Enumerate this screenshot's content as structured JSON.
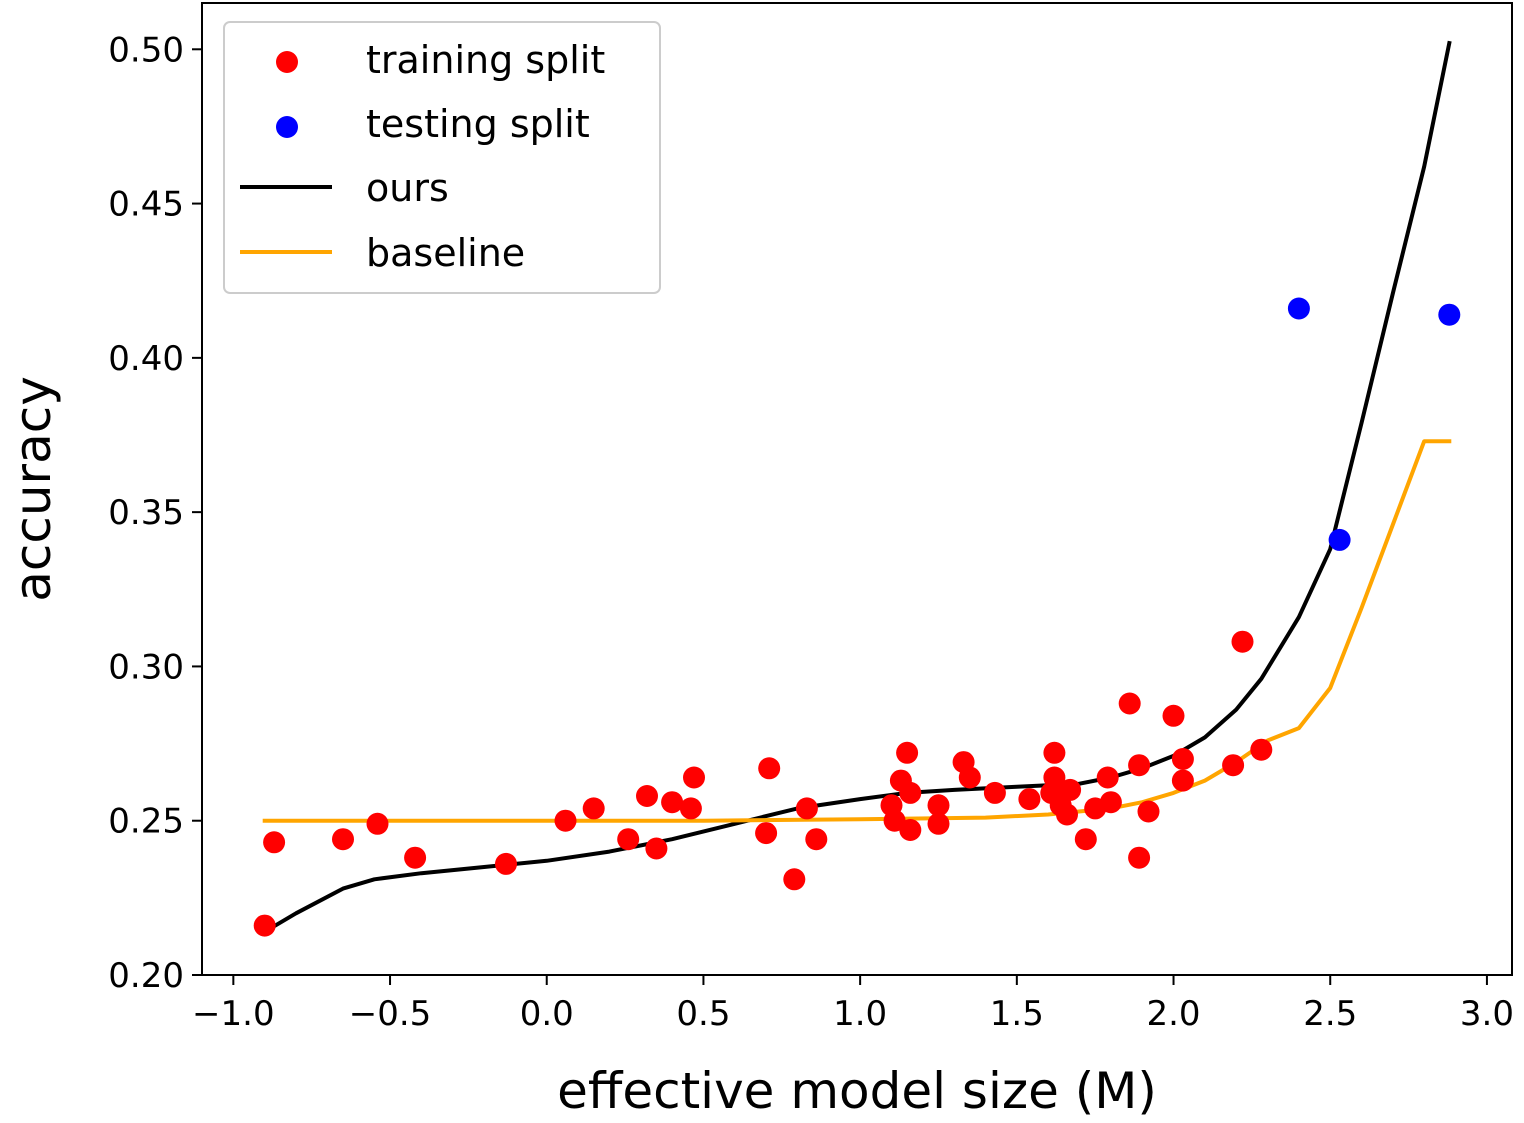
{
  "chart_data": {
    "type": "scatter",
    "xlabel": "effective model size (M)",
    "ylabel": "accuracy",
    "xlim": [
      -1.1,
      3.08
    ],
    "ylim": [
      0.2,
      0.515
    ],
    "xticks": [
      -1.0,
      -0.5,
      0.0,
      0.5,
      1.0,
      1.5,
      2.0,
      2.5,
      3.0
    ],
    "xtick_labels": [
      "−1.0",
      "−0.5",
      "0.0",
      "0.5",
      "1.0",
      "1.5",
      "2.0",
      "2.5",
      "3.0"
    ],
    "yticks": [
      0.2,
      0.25,
      0.3,
      0.35,
      0.4,
      0.45,
      0.5
    ],
    "ytick_labels": [
      "0.20",
      "0.25",
      "0.30",
      "0.35",
      "0.40",
      "0.45",
      "0.50"
    ],
    "grid": false,
    "legend_position": "top-left",
    "series": [
      {
        "name": "training split",
        "kind": "scatter",
        "color": "#ff0000",
        "points": [
          [
            -0.9,
            0.216
          ],
          [
            -0.87,
            0.243
          ],
          [
            -0.65,
            0.244
          ],
          [
            -0.54,
            0.249
          ],
          [
            -0.42,
            0.238
          ],
          [
            -0.13,
            0.236
          ],
          [
            0.06,
            0.25
          ],
          [
            0.15,
            0.254
          ],
          [
            0.26,
            0.244
          ],
          [
            0.32,
            0.258
          ],
          [
            0.35,
            0.241
          ],
          [
            0.4,
            0.256
          ],
          [
            0.46,
            0.254
          ],
          [
            0.47,
            0.264
          ],
          [
            0.7,
            0.246
          ],
          [
            0.71,
            0.267
          ],
          [
            0.79,
            0.231
          ],
          [
            0.83,
            0.254
          ],
          [
            0.86,
            0.244
          ],
          [
            1.1,
            0.255
          ],
          [
            1.11,
            0.25
          ],
          [
            1.13,
            0.263
          ],
          [
            1.15,
            0.272
          ],
          [
            1.16,
            0.247
          ],
          [
            1.16,
            0.259
          ],
          [
            1.25,
            0.249
          ],
          [
            1.25,
            0.255
          ],
          [
            1.33,
            0.269
          ],
          [
            1.35,
            0.264
          ],
          [
            1.43,
            0.259
          ],
          [
            1.54,
            0.257
          ],
          [
            1.61,
            0.259
          ],
          [
            1.62,
            0.272
          ],
          [
            1.62,
            0.264
          ],
          [
            1.64,
            0.255
          ],
          [
            1.66,
            0.252
          ],
          [
            1.67,
            0.26
          ],
          [
            1.72,
            0.244
          ],
          [
            1.75,
            0.254
          ],
          [
            1.79,
            0.264
          ],
          [
            1.8,
            0.256
          ],
          [
            1.86,
            0.288
          ],
          [
            1.89,
            0.268
          ],
          [
            1.89,
            0.238
          ],
          [
            1.92,
            0.253
          ],
          [
            2.0,
            0.284
          ],
          [
            2.03,
            0.27
          ],
          [
            2.03,
            0.263
          ],
          [
            2.19,
            0.268
          ],
          [
            2.22,
            0.308
          ],
          [
            2.28,
            0.273
          ]
        ]
      },
      {
        "name": "testing split",
        "kind": "scatter",
        "color": "#0000ff",
        "points": [
          [
            2.4,
            0.416
          ],
          [
            2.53,
            0.341
          ],
          [
            2.88,
            0.414
          ]
        ]
      },
      {
        "name": "ours",
        "kind": "line",
        "color": "#000000",
        "points": [
          [
            -0.9,
            0.214
          ],
          [
            -0.8,
            0.22
          ],
          [
            -0.65,
            0.228
          ],
          [
            -0.55,
            0.231
          ],
          [
            -0.4,
            0.233
          ],
          [
            -0.2,
            0.235
          ],
          [
            0.0,
            0.237
          ],
          [
            0.2,
            0.24
          ],
          [
            0.4,
            0.244
          ],
          [
            0.6,
            0.249
          ],
          [
            0.8,
            0.254
          ],
          [
            1.0,
            0.257
          ],
          [
            1.15,
            0.259
          ],
          [
            1.3,
            0.26
          ],
          [
            1.5,
            0.261
          ],
          [
            1.7,
            0.262
          ],
          [
            1.8,
            0.264
          ],
          [
            1.9,
            0.267
          ],
          [
            2.0,
            0.271
          ],
          [
            2.1,
            0.277
          ],
          [
            2.2,
            0.286
          ],
          [
            2.28,
            0.296
          ],
          [
            2.4,
            0.316
          ],
          [
            2.5,
            0.338
          ],
          [
            2.6,
            0.379
          ],
          [
            2.7,
            0.421
          ],
          [
            2.8,
            0.462
          ],
          [
            2.88,
            0.502
          ]
        ]
      },
      {
        "name": "baseline",
        "kind": "line",
        "color": "#ffa500",
        "points": [
          [
            -0.9,
            0.25
          ],
          [
            0.0,
            0.25
          ],
          [
            0.5,
            0.25
          ],
          [
            1.0,
            0.2505
          ],
          [
            1.4,
            0.251
          ],
          [
            1.6,
            0.252
          ],
          [
            1.8,
            0.254
          ],
          [
            1.9,
            0.256
          ],
          [
            2.0,
            0.259
          ],
          [
            2.1,
            0.263
          ],
          [
            2.2,
            0.269
          ],
          [
            2.3,
            0.276
          ],
          [
            2.4,
            0.28
          ],
          [
            2.5,
            0.293
          ],
          [
            2.6,
            0.319
          ],
          [
            2.7,
            0.346
          ],
          [
            2.8,
            0.373
          ],
          [
            2.88,
            0.373
          ]
        ]
      }
    ]
  }
}
